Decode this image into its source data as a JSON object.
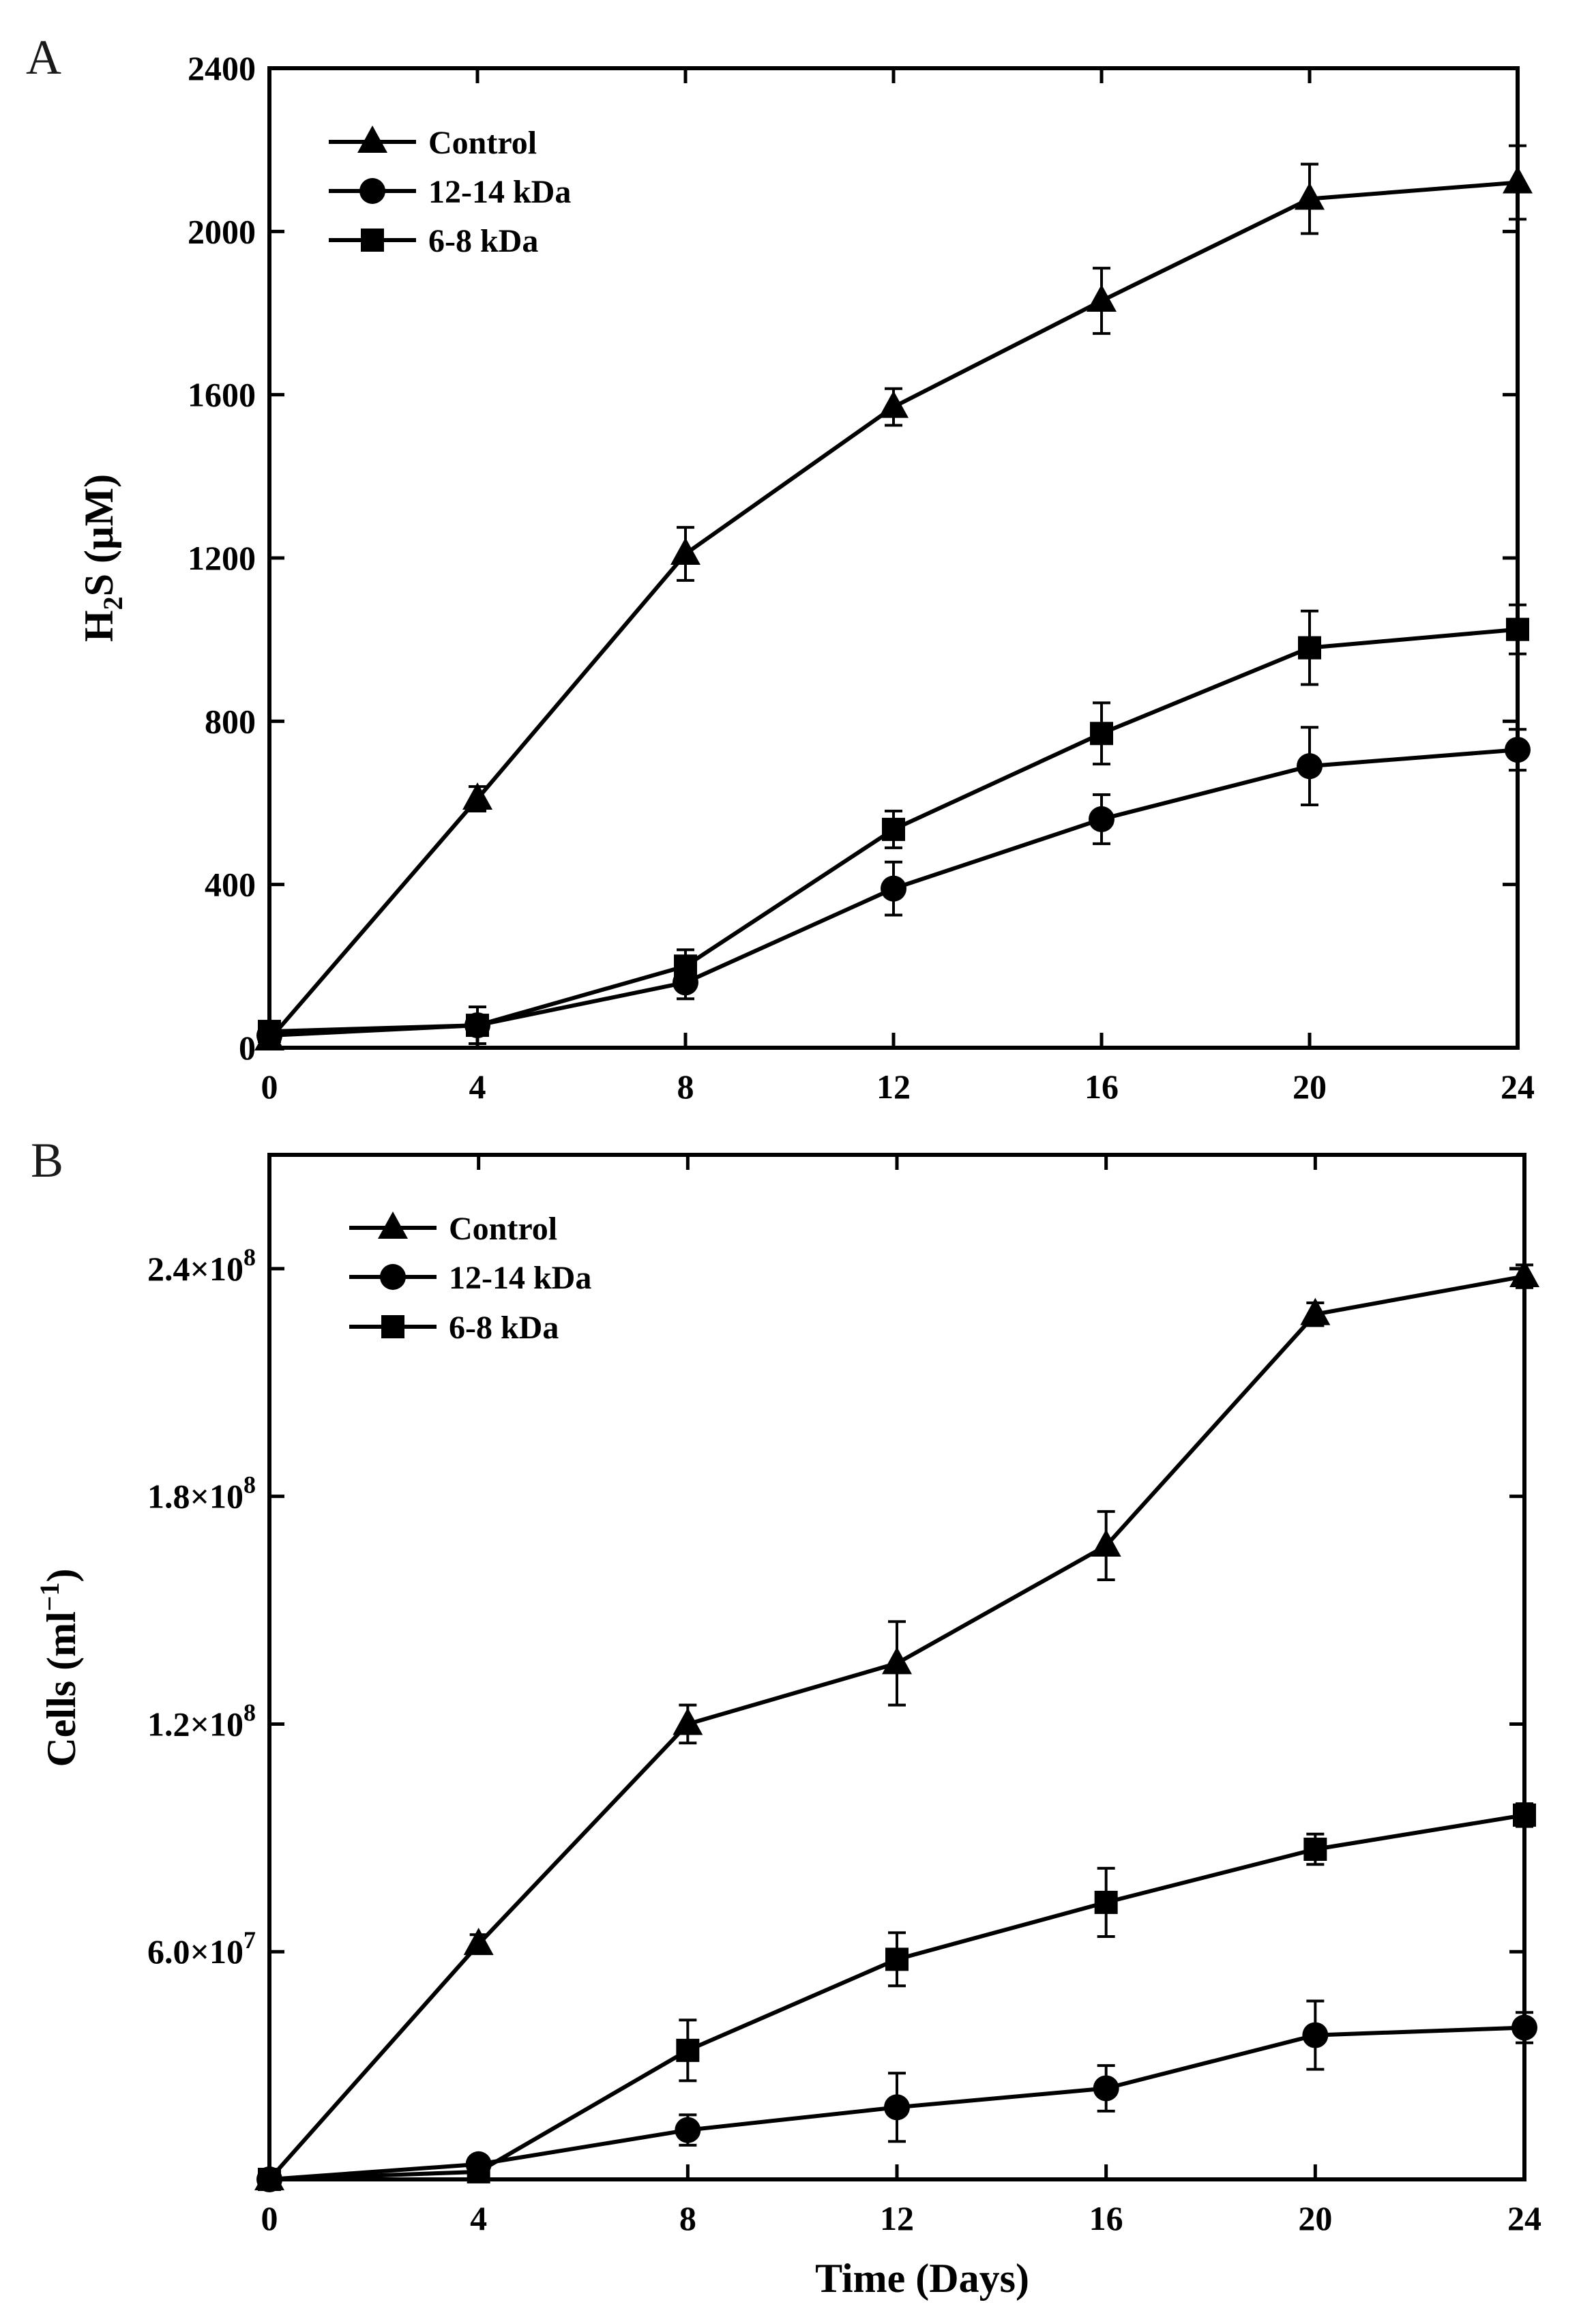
{
  "chart_data": [
    {
      "type": "line",
      "panel_label": "A",
      "xlabel": "",
      "ylabel": "H2S (µM)",
      "ylabel_main": "H",
      "ylabel_sub": "2",
      "ylabel_rest": "S (µM)",
      "xlim": [
        0,
        24
      ],
      "ylim": [
        0,
        2400
      ],
      "x_ticks": [
        0,
        4,
        8,
        12,
        16,
        20,
        24
      ],
      "x_tick_labels": [
        "0",
        "4",
        "8",
        "12",
        "16",
        "20",
        "24"
      ],
      "y_ticks": [
        0,
        400,
        800,
        1200,
        1600,
        2000,
        2400
      ],
      "y_tick_labels": [
        "0",
        "400",
        "800",
        "1200",
        "1600",
        "2000",
        "2400"
      ],
      "grid": false,
      "legend_position": "top-left",
      "x": [
        0,
        4,
        8,
        12,
        16,
        20,
        24
      ],
      "series": [
        {
          "name": "Control",
          "marker": "triangle",
          "values": [
            20,
            610,
            1210,
            1570,
            1830,
            2080,
            2120
          ],
          "errors": [
            10,
            30,
            65,
            45,
            80,
            85,
            90
          ]
        },
        {
          "name": "12-14 kDa",
          "marker": "circle",
          "values": [
            30,
            55,
            160,
            390,
            560,
            690,
            730
          ],
          "errors": [
            10,
            15,
            40,
            65,
            60,
            95,
            50
          ]
        },
        {
          "name": "6-8 kDa",
          "marker": "square",
          "values": [
            40,
            55,
            200,
            535,
            770,
            980,
            1025
          ],
          "errors": [
            10,
            45,
            40,
            45,
            75,
            90,
            60
          ]
        }
      ]
    },
    {
      "type": "line",
      "panel_label": "B",
      "xlabel": "Time (Days)",
      "ylabel": "Cells (ml−1)",
      "ylabel_main": "Cells (ml",
      "ylabel_sup": "−1",
      "ylabel_rest": ")",
      "xlim": [
        0,
        24
      ],
      "ylim": [
        0,
        270000000
      ],
      "x_ticks": [
        0,
        4,
        8,
        12,
        16,
        20,
        24
      ],
      "x_tick_labels": [
        "0",
        "4",
        "8",
        "12",
        "16",
        "20",
        "24"
      ],
      "y_ticks": [
        60000000,
        120000000,
        180000000,
        240000000
      ],
      "y_tick_labels": [
        {
          "mant": "6.0×10",
          "exp": "7"
        },
        {
          "mant": "1.2×10",
          "exp": "8"
        },
        {
          "mant": "1.8×10",
          "exp": "8"
        },
        {
          "mant": "2.4×10",
          "exp": "8"
        }
      ],
      "grid": false,
      "legend_position": "top-left",
      "x": [
        0,
        4,
        8,
        12,
        16,
        20,
        24
      ],
      "series": [
        {
          "name": "Control",
          "marker": "triangle",
          "values": [
            0,
            62000000,
            120000000,
            136000000,
            167000000,
            228000000,
            238000000
          ],
          "errors": [
            500000,
            2500000,
            5000000,
            11000000,
            9000000,
            3000000,
            3000000
          ]
        },
        {
          "name": "12-14 kDa",
          "marker": "circle",
          "values": [
            0,
            4000000,
            13000000,
            19000000,
            24000000,
            38000000,
            40000000
          ],
          "errors": [
            500000,
            1000000,
            4000000,
            9000000,
            6000000,
            9000000,
            4000000
          ]
        },
        {
          "name": "6-8 kDa",
          "marker": "square",
          "values": [
            0,
            2000000,
            34000000,
            58000000,
            73000000,
            87000000,
            96000000
          ],
          "errors": [
            500000,
            1000000,
            8000000,
            7000000,
            9000000,
            4000000,
            3000000
          ]
        }
      ]
    }
  ]
}
